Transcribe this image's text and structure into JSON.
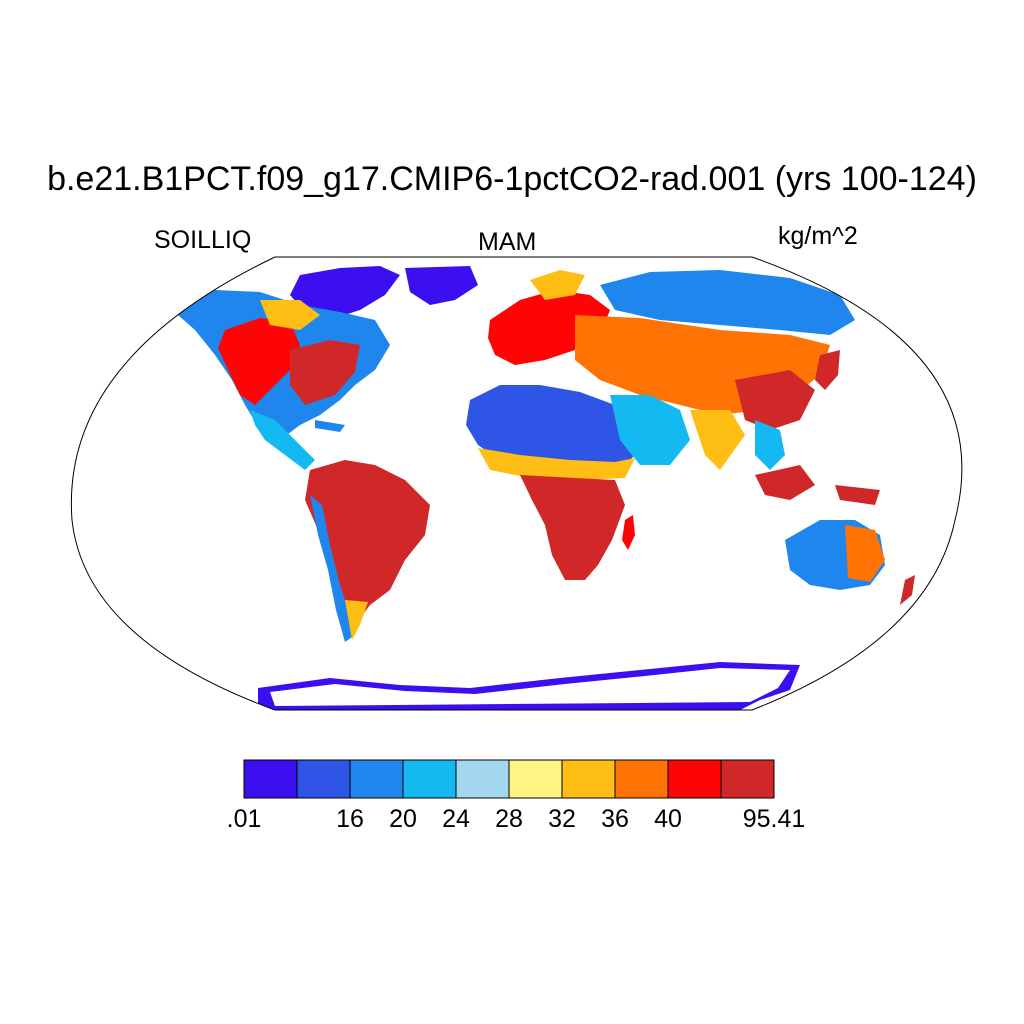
{
  "title": "b.e21.B1PCT.f09_g17.CMIP6-1pctCO2-rad.001 (yrs 100-124)",
  "left_label": "SOILLIQ",
  "center_label": "MAM",
  "right_label": "kg/m^2",
  "colorbar": {
    "colors": [
      "#3b0ff0",
      "#2f55e6",
      "#1f86ee",
      "#15b9f2",
      "#a3d7ef",
      "#fff384",
      "#ffbe14",
      "#ff7304",
      "#ff0404",
      "#d02828"
    ],
    "tick_labels": [
      ".01",
      "16",
      "20",
      "24",
      "28",
      "32",
      "36",
      "40",
      "95.41"
    ]
  },
  "map_colors": {
    "ice_sheet": "#3b0ff0",
    "dry": "#2f55e6",
    "medium_dry": "#1f86ee",
    "light_blue": "#15b9f2",
    "pale_blue": "#a3d7ef",
    "yellow": "#fff384",
    "gold": "#ffbe14",
    "orange": "#ff7304",
    "red": "#ff0404",
    "dark_red": "#d02828"
  }
}
